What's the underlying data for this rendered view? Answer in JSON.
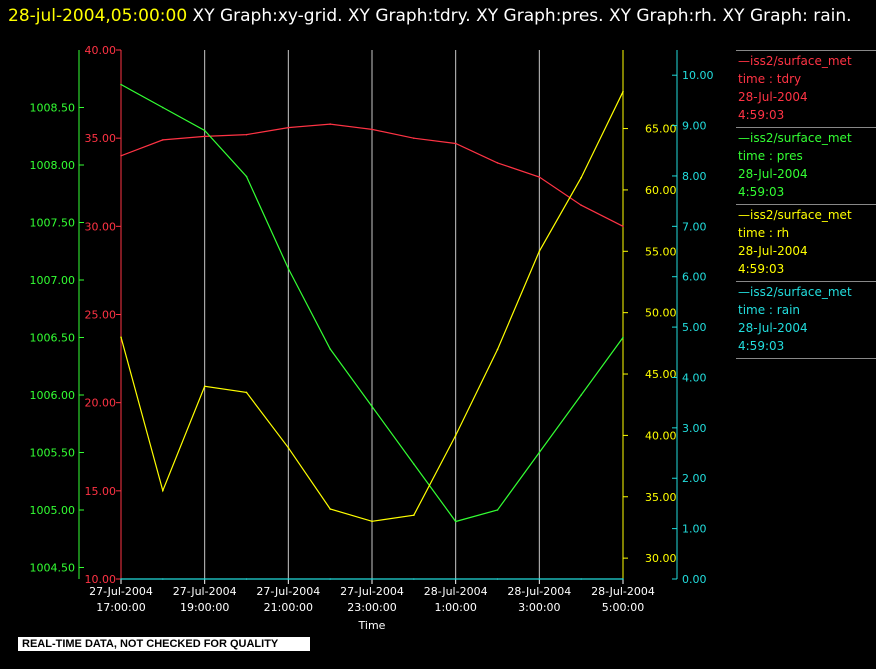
{
  "header": {
    "timestamp": "28-jul-2004,05:00:00",
    "title": "XY Graph:xy-grid.  XY Graph:tdry.  XY Graph:pres.  XY Graph:rh.  XY Graph: rain."
  },
  "notice": "REAL-TIME DATA, NOT CHECKED FOR QUALITY",
  "legend": [
    {
      "source": "iss2/surface_met",
      "var": "time : tdry",
      "date": "28-Jul-2004",
      "time": "4:59:03",
      "color": "#ff3344"
    },
    {
      "source": "iss2/surface_met",
      "var": "time : pres",
      "date": "28-Jul-2004",
      "time": "4:59:03",
      "color": "#33ff33"
    },
    {
      "source": "iss2/surface_met",
      "var": "time : rh",
      "date": "28-Jul-2004",
      "time": "4:59:03",
      "color": "#ffff00"
    },
    {
      "source": "iss2/surface_met",
      "var": "time : rain",
      "date": "28-Jul-2004",
      "time": "4:59:03",
      "color": "#22dddd"
    }
  ],
  "chart_data": {
    "type": "line",
    "xlabel": "Time",
    "x_tick_labels": [
      [
        "27-Jul-2004",
        "17:00:00"
      ],
      [
        "27-Jul-2004",
        "19:00:00"
      ],
      [
        "27-Jul-2004",
        "21:00:00"
      ],
      [
        "27-Jul-2004",
        "23:00:00"
      ],
      [
        "28-Jul-2004",
        "1:00:00"
      ],
      [
        "28-Jul-2004",
        "3:00:00"
      ],
      [
        "28-Jul-2004",
        "5:00:00"
      ]
    ],
    "x_hours": [
      0,
      1,
      2,
      3,
      4,
      5,
      6,
      7,
      8,
      9,
      10,
      11,
      12
    ],
    "xlim_hours": [
      0,
      12
    ],
    "grid": "vertical",
    "axes": {
      "pres": {
        "color": "#33ff33",
        "ylim": [
          1004.4,
          1009.0
        ],
        "ticks": [
          "1004.50",
          "1005.00",
          "1005.50",
          "1006.00",
          "1006.50",
          "1007.00",
          "1007.50",
          "1008.00",
          "1008.50"
        ]
      },
      "tdry": {
        "color": "#ff3344",
        "ylim": [
          10,
          40
        ],
        "ticks": [
          "10.00",
          "15.00",
          "20.00",
          "25.00",
          "30.00",
          "35.00",
          "40.00"
        ]
      },
      "rh": {
        "color": "#ffff00",
        "ylim": [
          28.3,
          71.4
        ],
        "ticks": [
          "30.00",
          "35.00",
          "40.00",
          "45.00",
          "50.00",
          "55.00",
          "60.00",
          "65.00"
        ]
      },
      "rain": {
        "color": "#22dddd",
        "ylim": [
          0,
          10.5
        ],
        "ticks": [
          "0.00",
          "1.00",
          "2.00",
          "3.00",
          "4.00",
          "5.00",
          "6.00",
          "7.00",
          "8.00",
          "9.00",
          "10.00"
        ]
      }
    },
    "series": [
      {
        "name": "tdry",
        "axis": "tdry",
        "values": [
          34.0,
          34.9,
          35.1,
          35.2,
          35.6,
          35.8,
          35.5,
          35.0,
          34.7,
          33.6,
          32.8,
          31.2,
          30.0
        ]
      },
      {
        "name": "pres",
        "axis": "pres",
        "values": [
          1008.7,
          1008.5,
          1008.3,
          1007.9,
          1007.1,
          1006.4,
          1005.9,
          1005.4,
          1004.9,
          1005.0,
          1005.5,
          1006.0,
          1006.5
        ]
      },
      {
        "name": "rh",
        "axis": "rh",
        "values": [
          48.0,
          35.5,
          44.0,
          43.5,
          39.0,
          34.0,
          33.0,
          33.5,
          40.0,
          47.0,
          55.0,
          61.0,
          68.0
        ]
      },
      {
        "name": "rain",
        "axis": "rain",
        "values": [
          0,
          0,
          0,
          0,
          0,
          0,
          0,
          0,
          0,
          0,
          0,
          0,
          0
        ]
      }
    ]
  }
}
